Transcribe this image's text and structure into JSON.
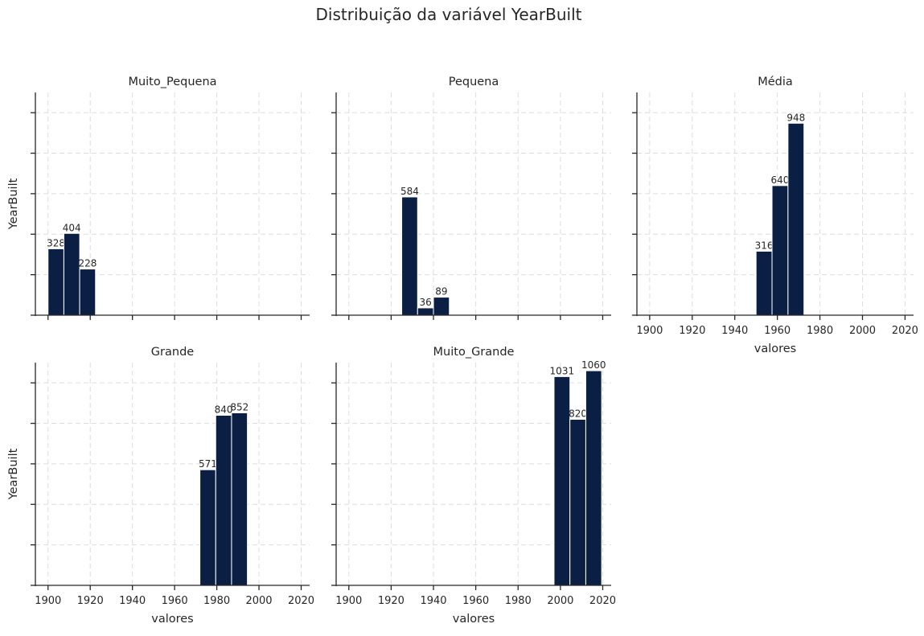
{
  "figure": {
    "title": "Distribuição da variável YearBuilt"
  },
  "colors": {
    "bar": "#0b1f45",
    "bar_edge": "#ffffff",
    "axis": "#262626",
    "grid": "#dddddd",
    "text": "#262626"
  },
  "chart_data": [
    {
      "type": "bar",
      "title": "Muito_Pequena",
      "xlabel": "",
      "ylabel": "YearBuilt",
      "xlim": [
        1894,
        2024
      ],
      "x_ticks": [
        1900,
        1920,
        1940,
        1960,
        1980,
        2000,
        2020
      ],
      "show_x_tick_labels": false,
      "grid": true,
      "bar_width_years": 7.5,
      "bars": [
        {
          "x": 1900,
          "value": 328
        },
        {
          "x": 1907.5,
          "value": 404
        },
        {
          "x": 1915,
          "value": 228
        }
      ]
    },
    {
      "type": "bar",
      "title": "Pequena",
      "xlabel": "",
      "ylabel": "",
      "xlim": [
        1894,
        2024
      ],
      "x_ticks": [
        1900,
        1920,
        1940,
        1960,
        1980,
        2000,
        2020
      ],
      "show_x_tick_labels": false,
      "grid": true,
      "bar_width_years": 7.5,
      "bars": [
        {
          "x": 1925,
          "value": 584
        },
        {
          "x": 1932.5,
          "value": 36
        },
        {
          "x": 1940,
          "value": 89
        }
      ]
    },
    {
      "type": "bar",
      "title": "Média",
      "xlabel": "valores",
      "ylabel": "",
      "xlim": [
        1894,
        2024
      ],
      "x_ticks": [
        1900,
        1920,
        1940,
        1960,
        1980,
        2000,
        2020
      ],
      "show_x_tick_labels": true,
      "grid": true,
      "bar_width_years": 7.5,
      "bars": [
        {
          "x": 1950,
          "value": 316
        },
        {
          "x": 1957.5,
          "value": 640
        },
        {
          "x": 1965,
          "value": 948
        }
      ]
    },
    {
      "type": "bar",
      "title": "Grande",
      "xlabel": "valores",
      "ylabel": "YearBuilt",
      "xlim": [
        1894,
        2024
      ],
      "x_ticks": [
        1900,
        1920,
        1940,
        1960,
        1980,
        2000,
        2020
      ],
      "show_x_tick_labels": true,
      "grid": true,
      "bar_width_years": 7.5,
      "bars": [
        {
          "x": 1972,
          "value": 571
        },
        {
          "x": 1979.5,
          "value": 840
        },
        {
          "x": 1987,
          "value": 852
        }
      ]
    },
    {
      "type": "bar",
      "title": "Muito_Grande",
      "xlabel": "valores",
      "ylabel": "",
      "xlim": [
        1894,
        2024
      ],
      "x_ticks": [
        1900,
        1920,
        1940,
        1960,
        1980,
        2000,
        2020
      ],
      "show_x_tick_labels": true,
      "grid": true,
      "bar_width_years": 7.5,
      "bars": [
        {
          "x": 1997,
          "value": 1031
        },
        {
          "x": 2004.5,
          "value": 820
        },
        {
          "x": 2012,
          "value": 1060
        }
      ]
    }
  ]
}
